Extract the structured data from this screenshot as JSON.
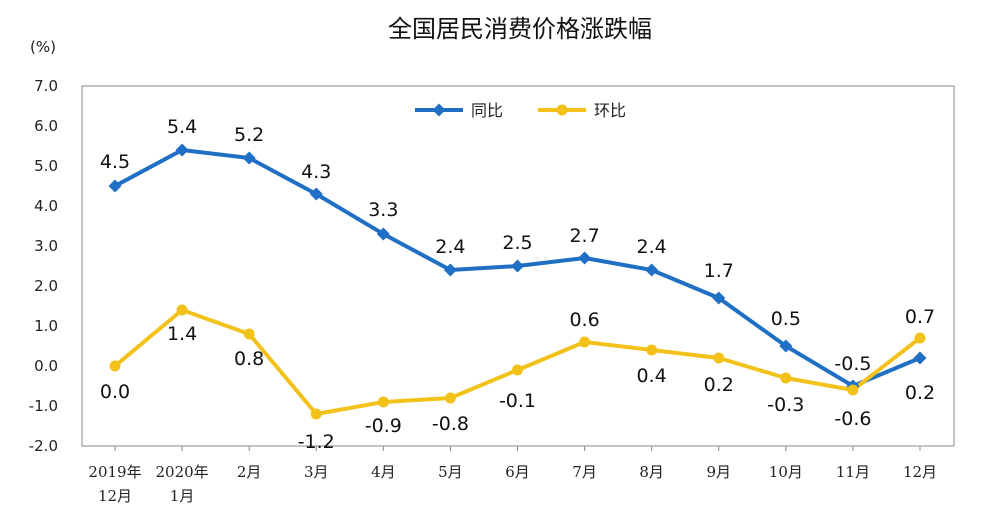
{
  "chart_data": {
    "type": "line",
    "title": "全国居民消费价格涨跌幅",
    "unit_label": "(%)",
    "categories": [
      [
        "2019年",
        "12月"
      ],
      [
        "2020年",
        "1月"
      ],
      [
        "2月"
      ],
      [
        "3月"
      ],
      [
        "4月"
      ],
      [
        "5月"
      ],
      [
        "6月"
      ],
      [
        "7月"
      ],
      [
        "8月"
      ],
      [
        "9月"
      ],
      [
        "10月"
      ],
      [
        "11月"
      ],
      [
        "12月"
      ]
    ],
    "yticks": [
      "7.0",
      "6.0",
      "5.0",
      "4.0",
      "3.0",
      "2.0",
      "1.0",
      "0.0",
      "-1.0",
      "-2.0"
    ],
    "ylim": [
      -2,
      7
    ],
    "legend_position": "top-center",
    "grid": false,
    "series": [
      {
        "name": "同比",
        "color": "#1f6fc5",
        "marker": "diamond",
        "values": [
          4.5,
          5.4,
          5.2,
          4.3,
          3.3,
          2.4,
          2.5,
          2.7,
          2.4,
          1.7,
          0.5,
          -0.5,
          0.2
        ],
        "labels": [
          "4.5",
          "5.4",
          "5.2",
          "4.3",
          "3.3",
          "2.4",
          "2.5",
          "2.7",
          "2.4",
          "1.7",
          "0.5",
          "-0.5",
          "0.2"
        ]
      },
      {
        "name": "环比",
        "color": "#f2c21b",
        "marker": "circle",
        "values": [
          0.0,
          1.4,
          0.8,
          -1.2,
          -0.9,
          -0.8,
          -0.1,
          0.6,
          0.4,
          0.2,
          -0.3,
          -0.6,
          0.7
        ],
        "labels": [
          "0.0",
          "1.4",
          "0.8",
          "-1.2",
          "-0.9",
          "-0.8",
          "-0.1",
          "0.6",
          "0.4",
          "0.2",
          "-0.3",
          "-0.6",
          "0.7"
        ]
      }
    ]
  }
}
